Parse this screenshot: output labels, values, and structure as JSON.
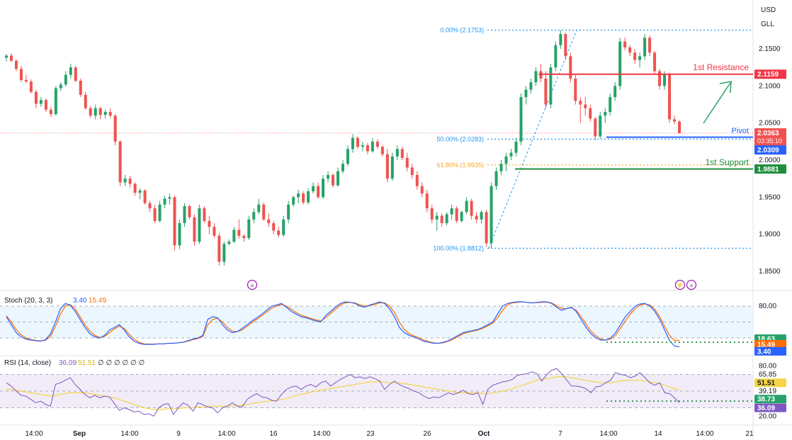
{
  "header": {
    "currency": "USD",
    "unit": "GLL"
  },
  "colors": {
    "up": "#26a269",
    "down": "#ef5350",
    "blue": "#2962ff",
    "resistance": "#f23645",
    "support": "#1e8e3e",
    "stochK": "#2962ff",
    "stochD": "#ff6d00",
    "rsi": "#7e57c2",
    "rsiMa": "#f5d547",
    "fib": "#2196f3",
    "fib618": "#f5a623"
  },
  "chart_data": {
    "type": "candlestick",
    "price_axis": {
      "min": 1.82,
      "max": 2.18,
      "ticks": [
        "2.1500",
        "2.1000",
        "2.0500",
        "2.0000",
        "1.9500",
        "1.9000",
        "1.8500"
      ]
    },
    "x_axis_labels": [
      "14:00",
      "Sep",
      "14:00",
      "9",
      "14:00",
      "16",
      "14:00",
      "23",
      "26",
      "Oct",
      "7",
      "14:00",
      "14",
      "14:00",
      "21"
    ],
    "candles": [
      [
        2.138,
        2.143,
        2.133,
        2.141
      ],
      [
        2.141,
        2.144,
        2.132,
        2.134
      ],
      [
        2.134,
        2.136,
        2.12,
        2.123
      ],
      [
        2.123,
        2.127,
        2.105,
        2.108
      ],
      [
        2.108,
        2.115,
        2.104,
        2.106
      ],
      [
        2.106,
        2.109,
        2.09,
        2.092
      ],
      [
        2.092,
        2.095,
        2.07,
        2.076
      ],
      [
        2.076,
        2.085,
        2.072,
        2.081
      ],
      [
        2.081,
        2.083,
        2.065,
        2.068
      ],
      [
        2.068,
        2.072,
        2.058,
        2.062
      ],
      [
        2.062,
        2.1,
        2.06,
        2.097
      ],
      [
        2.097,
        2.105,
        2.093,
        2.102
      ],
      [
        2.102,
        2.12,
        2.099,
        2.115
      ],
      [
        2.115,
        2.13,
        2.11,
        2.125
      ],
      [
        2.125,
        2.127,
        2.105,
        2.107
      ],
      [
        2.107,
        2.11,
        2.085,
        2.088
      ],
      [
        2.088,
        2.092,
        2.068,
        2.07
      ],
      [
        2.07,
        2.073,
        2.057,
        2.06
      ],
      [
        2.06,
        2.075,
        2.055,
        2.07
      ],
      [
        2.07,
        2.072,
        2.055,
        2.061
      ],
      [
        2.061,
        2.068,
        2.056,
        2.065
      ],
      [
        2.065,
        2.07,
        2.057,
        2.06
      ],
      [
        2.06,
        2.062,
        2.02,
        2.025
      ],
      [
        2.025,
        2.027,
        1.965,
        1.97
      ],
      [
        1.97,
        1.98,
        1.965,
        1.975
      ],
      [
        1.975,
        1.979,
        1.963,
        1.968
      ],
      [
        1.968,
        1.97,
        1.952,
        1.956
      ],
      [
        1.956,
        1.962,
        1.947,
        1.959
      ],
      [
        1.959,
        1.961,
        1.94,
        1.942
      ],
      [
        1.942,
        1.945,
        1.93,
        1.935
      ],
      [
        1.935,
        1.94,
        1.915,
        1.918
      ],
      [
        1.918,
        1.945,
        1.916,
        1.94
      ],
      [
        1.94,
        1.952,
        1.935,
        1.948
      ],
      [
        1.948,
        1.955,
        1.94,
        1.95
      ],
      [
        1.95,
        1.952,
        1.878,
        1.885
      ],
      [
        1.885,
        1.92,
        1.88,
        1.915
      ],
      [
        1.915,
        1.942,
        1.91,
        1.938
      ],
      [
        1.938,
        1.94,
        1.92,
        1.923
      ],
      [
        1.923,
        1.927,
        1.885,
        1.89
      ],
      [
        1.89,
        1.94,
        1.887,
        1.935
      ],
      [
        1.935,
        1.938,
        1.915,
        1.918
      ],
      [
        1.918,
        1.925,
        1.9,
        1.91
      ],
      [
        1.91,
        1.915,
        1.895,
        1.898
      ],
      [
        1.898,
        1.902,
        1.858,
        1.863
      ],
      [
        1.863,
        1.89,
        1.858,
        1.887
      ],
      [
        1.887,
        1.893,
        1.885,
        1.89
      ],
      [
        1.89,
        1.91,
        1.888,
        1.906
      ],
      [
        1.906,
        1.92,
        1.894,
        1.898
      ],
      [
        1.898,
        1.9,
        1.89,
        1.895
      ],
      [
        1.895,
        1.925,
        1.892,
        1.92
      ],
      [
        1.92,
        1.935,
        1.915,
        1.93
      ],
      [
        1.93,
        1.948,
        1.927,
        1.94
      ],
      [
        1.94,
        1.943,
        1.918,
        1.92
      ],
      [
        1.92,
        1.928,
        1.91,
        1.915
      ],
      [
        1.915,
        1.918,
        1.9,
        1.905
      ],
      [
        1.905,
        1.91,
        1.896,
        1.899
      ],
      [
        1.899,
        1.925,
        1.897,
        1.92
      ],
      [
        1.92,
        1.945,
        1.915,
        1.94
      ],
      [
        1.94,
        1.952,
        1.937,
        1.95
      ],
      [
        1.95,
        1.96,
        1.942,
        1.955
      ],
      [
        1.955,
        1.958,
        1.94,
        1.943
      ],
      [
        1.943,
        1.962,
        1.94,
        1.958
      ],
      [
        1.958,
        1.97,
        1.955,
        1.965
      ],
      [
        1.965,
        1.97,
        1.948,
        1.95
      ],
      [
        1.95,
        1.98,
        1.948,
        1.975
      ],
      [
        1.975,
        1.985,
        1.97,
        1.98
      ],
      [
        1.98,
        1.982,
        1.963,
        1.966
      ],
      [
        1.966,
        1.99,
        1.964,
        1.985
      ],
      [
        1.985,
        2.0,
        1.982,
        1.995
      ],
      [
        1.995,
        2.02,
        1.992,
        2.015
      ],
      [
        2.015,
        2.035,
        2.01,
        2.03
      ],
      [
        2.03,
        2.032,
        2.015,
        2.018
      ],
      [
        2.018,
        2.025,
        2.012,
        2.02
      ],
      [
        2.02,
        2.023,
        2.008,
        2.012
      ],
      [
        2.012,
        2.03,
        2.01,
        2.025
      ],
      [
        2.025,
        2.028,
        2.015,
        2.018
      ],
      [
        2.018,
        2.02,
        2.005,
        2.008
      ],
      [
        2.008,
        2.015,
        1.97,
        1.975
      ],
      [
        1.975,
        2.01,
        1.972,
        2.005
      ],
      [
        2.005,
        2.02,
        2.0,
        2.015
      ],
      [
        2.015,
        2.018,
        2.0,
        2.003
      ],
      [
        2.003,
        2.01,
        1.985,
        1.99
      ],
      [
        1.99,
        1.995,
        1.975,
        1.98
      ],
      [
        1.98,
        1.985,
        1.96,
        1.965
      ],
      [
        1.965,
        1.97,
        1.95,
        1.955
      ],
      [
        1.955,
        1.96,
        1.93,
        1.935
      ],
      [
        1.935,
        1.94,
        1.915,
        1.92
      ],
      [
        1.92,
        1.93,
        1.905,
        1.925
      ],
      [
        1.925,
        1.928,
        1.91,
        1.915
      ],
      [
        1.915,
        1.93,
        1.912,
        1.927
      ],
      [
        1.927,
        1.94,
        1.92,
        1.935
      ],
      [
        1.935,
        1.938,
        1.915,
        1.918
      ],
      [
        1.918,
        1.932,
        1.916,
        1.93
      ],
      [
        1.93,
        1.95,
        1.927,
        1.945
      ],
      [
        1.945,
        1.948,
        1.92,
        1.925
      ],
      [
        1.925,
        1.93,
        1.915,
        1.92
      ],
      [
        1.92,
        1.932,
        1.915,
        1.93
      ],
      [
        1.93,
        1.933,
        1.883,
        1.888
      ],
      [
        1.888,
        1.97,
        1.8812,
        1.965
      ],
      [
        1.965,
        1.99,
        1.96,
        1.985
      ],
      [
        1.985,
        2.0,
        1.98,
        1.995
      ],
      [
        1.995,
        2.01,
        1.985,
        2.005
      ],
      [
        2.005,
        2.015,
        2.0,
        2.01
      ],
      [
        2.01,
        2.03,
        2.005,
        2.025
      ],
      [
        2.025,
        2.09,
        2.02,
        2.085
      ],
      [
        2.085,
        2.1,
        2.075,
        2.095
      ],
      [
        2.095,
        2.11,
        2.09,
        2.105
      ],
      [
        2.105,
        2.125,
        2.1,
        2.12
      ],
      [
        2.12,
        2.13,
        2.105,
        2.11
      ],
      [
        2.11,
        2.12,
        2.07,
        2.075
      ],
      [
        2.075,
        2.13,
        2.07,
        2.125
      ],
      [
        2.125,
        2.16,
        2.12,
        2.155
      ],
      [
        2.155,
        2.1753,
        2.15,
        2.17
      ],
      [
        2.17,
        2.172,
        2.135,
        2.14
      ],
      [
        2.14,
        2.145,
        2.105,
        2.11
      ],
      [
        2.11,
        2.115,
        2.075,
        2.08
      ],
      [
        2.08,
        2.085,
        2.05,
        2.075
      ],
      [
        2.075,
        2.085,
        2.06,
        2.07
      ],
      [
        2.07,
        2.075,
        2.052,
        2.056
      ],
      [
        2.056,
        2.058,
        2.027,
        2.032
      ],
      [
        2.032,
        2.065,
        2.029,
        2.06
      ],
      [
        2.06,
        2.07,
        2.05,
        2.065
      ],
      [
        2.065,
        2.09,
        2.06,
        2.085
      ],
      [
        2.085,
        2.105,
        2.08,
        2.1
      ],
      [
        2.1,
        2.165,
        2.095,
        2.16
      ],
      [
        2.16,
        2.165,
        2.148,
        2.152
      ],
      [
        2.152,
        2.155,
        2.14,
        2.145
      ],
      [
        2.145,
        2.15,
        2.13,
        2.135
      ],
      [
        2.135,
        2.145,
        2.125,
        2.14
      ],
      [
        2.14,
        2.17,
        2.135,
        2.165
      ],
      [
        2.165,
        2.168,
        2.14,
        2.145
      ],
      [
        2.145,
        2.147,
        2.115,
        2.12
      ],
      [
        2.12,
        2.123,
        2.095,
        2.1
      ],
      [
        2.1,
        2.12,
        2.095,
        2.1159
      ],
      [
        2.1159,
        2.118,
        2.05,
        2.055
      ],
      [
        2.055,
        2.06,
        2.048,
        2.052
      ],
      [
        2.052,
        2.054,
        2.036,
        2.0363
      ]
    ],
    "current_price": "2.0363",
    "countdown": "03:35:10",
    "levels": {
      "resistance": {
        "label": "1st Resistance",
        "value": 2.1159,
        "tag": "2.1159"
      },
      "pivot": {
        "label": "Pivot",
        "value": 2.0309,
        "tag": "2.0309"
      },
      "support": {
        "label": "1st Support",
        "value": 1.9881,
        "tag": "1.9881"
      }
    },
    "fib": [
      {
        "label": "0.00% (2.1753)",
        "value": 2.1753
      },
      {
        "label": "50.00% (2.0283)",
        "value": 2.0283
      },
      {
        "label": "61.80% (1.9935)",
        "value": 1.9935
      },
      {
        "label": "100.00% (1.8812)",
        "value": 1.8812
      }
    ],
    "stoch": {
      "title": "Stoch (20, 3, 3)",
      "k_value": "3.40",
      "d_value": "15.49",
      "mid_value": "18.63",
      "top_level": "80.00",
      "k": [
        60,
        45,
        30,
        22,
        18,
        16,
        15,
        14,
        17,
        28,
        50,
        75,
        85,
        82,
        70,
        55,
        40,
        28,
        22,
        20,
        25,
        35,
        40,
        45,
        35,
        22,
        14,
        10,
        8,
        8,
        8,
        9,
        9,
        10,
        10,
        11,
        12,
        15,
        18,
        20,
        25,
        55,
        60,
        58,
        45,
        35,
        30,
        32,
        38,
        45,
        52,
        58,
        65,
        72,
        80,
        82,
        85,
        78,
        70,
        65,
        60,
        58,
        55,
        52,
        50,
        62,
        70,
        78,
        85,
        88,
        87,
        85,
        80,
        78,
        82,
        85,
        88,
        85,
        75,
        60,
        40,
        30,
        25,
        22,
        18,
        14,
        12,
        10,
        10,
        12,
        15,
        20,
        25,
        30,
        32,
        34,
        36,
        40,
        45,
        50,
        65,
        80,
        85,
        87,
        88,
        88,
        87,
        86,
        87,
        88,
        88,
        85,
        78,
        72,
        75,
        78,
        70,
        55,
        40,
        28,
        20,
        16,
        16,
        20,
        30,
        45,
        60,
        70,
        80,
        84,
        85,
        80,
        70,
        55,
        35,
        15,
        5,
        3.4
      ],
      "d": [
        62,
        50,
        36,
        26,
        20,
        17,
        15.5,
        14.5,
        16,
        23,
        42,
        65,
        80,
        83,
        75,
        60,
        45,
        33,
        25,
        21,
        23,
        30,
        37,
        42,
        38,
        27,
        18,
        12,
        9,
        8.5,
        8.5,
        9,
        9,
        10,
        10,
        11,
        12,
        14,
        17,
        19,
        23,
        45,
        55,
        57,
        50,
        40,
        33,
        32,
        35,
        42,
        49,
        55,
        62,
        69,
        76,
        80,
        83,
        80,
        74,
        68,
        63,
        60,
        57,
        54,
        52,
        58,
        66,
        74,
        82,
        86,
        87,
        86,
        82,
        80,
        81,
        83,
        86,
        86,
        80,
        68,
        50,
        36,
        28,
        24,
        20,
        16,
        13,
        11,
        10,
        11,
        14,
        18,
        23,
        28,
        31,
        33,
        35,
        38,
        43,
        48,
        58,
        72,
        82,
        86,
        87,
        88,
        87,
        86,
        86.5,
        87,
        87.5,
        86,
        81,
        76,
        75,
        77,
        72,
        60,
        46,
        33,
        24,
        18,
        16,
        18,
        25,
        38,
        52,
        65,
        75,
        82,
        84,
        82,
        74,
        60,
        42,
        25,
        15.49,
        15.49
      ]
    },
    "rsi": {
      "title": "RSI (14, close)",
      "value": "36.09",
      "ma_value": "51.51",
      "levels": [
        "80.00",
        "65.85",
        "39.19",
        "20.00"
      ],
      "support_tag": "38.73",
      "rsi": [
        60,
        56,
        50,
        45,
        44,
        40,
        36,
        38,
        34,
        32,
        58,
        60,
        63,
        66,
        58,
        52,
        46,
        42,
        45,
        42,
        44,
        43,
        35,
        27,
        30,
        28,
        25,
        26,
        22,
        23,
        20,
        30,
        34,
        35,
        22,
        30,
        36,
        33,
        26,
        36,
        34,
        31,
        30,
        24,
        30,
        32,
        36,
        32,
        31,
        40,
        44,
        47,
        43,
        42,
        39,
        38,
        46,
        52,
        55,
        56,
        52,
        56,
        58,
        55,
        60,
        62,
        56,
        60,
        64,
        67,
        70,
        66,
        67,
        65,
        67,
        65,
        62,
        52,
        58,
        62,
        58,
        55,
        53,
        50,
        48,
        44,
        41,
        43,
        42,
        45,
        48,
        46,
        48,
        51,
        47,
        46,
        48,
        34,
        52,
        57,
        59,
        61,
        62,
        64,
        69,
        70,
        71,
        73,
        71,
        62,
        70,
        75,
        77,
        71,
        64,
        56,
        56,
        55,
        53,
        48,
        55,
        56,
        60,
        63,
        72,
        70,
        69,
        66,
        68,
        72,
        66,
        60,
        57,
        60,
        48,
        47,
        42,
        36.09
      ],
      "ma": [
        52,
        52,
        51,
        50,
        49,
        48,
        47,
        46,
        45,
        44,
        45,
        46,
        47,
        48,
        48,
        48,
        48,
        47,
        46,
        45,
        44,
        43,
        42,
        40,
        38,
        36,
        34,
        32,
        30,
        29,
        28,
        28,
        28,
        29,
        29,
        29,
        30,
        30,
        30,
        31,
        31,
        32,
        32,
        32,
        32,
        32,
        33,
        33,
        33,
        34,
        35,
        36,
        37,
        38,
        38,
        39,
        40,
        41,
        43,
        45,
        46,
        47,
        49,
        50,
        51,
        52,
        53,
        54,
        55,
        56,
        57,
        58,
        59,
        60,
        61,
        61,
        61,
        61,
        60,
        60,
        60,
        59,
        58,
        57,
        56,
        55,
        54,
        53,
        52,
        51,
        50,
        49,
        48,
        48,
        48,
        48,
        48,
        47,
        47,
        48,
        49,
        50,
        51,
        53,
        55,
        57,
        59,
        61,
        63,
        64,
        65,
        66,
        67,
        67,
        67,
        66,
        65,
        64,
        63,
        62,
        61,
        60,
        60,
        60,
        61,
        62,
        63,
        63,
        63,
        63,
        62,
        61,
        60,
        59,
        57,
        55,
        53,
        51.51
      ]
    }
  }
}
